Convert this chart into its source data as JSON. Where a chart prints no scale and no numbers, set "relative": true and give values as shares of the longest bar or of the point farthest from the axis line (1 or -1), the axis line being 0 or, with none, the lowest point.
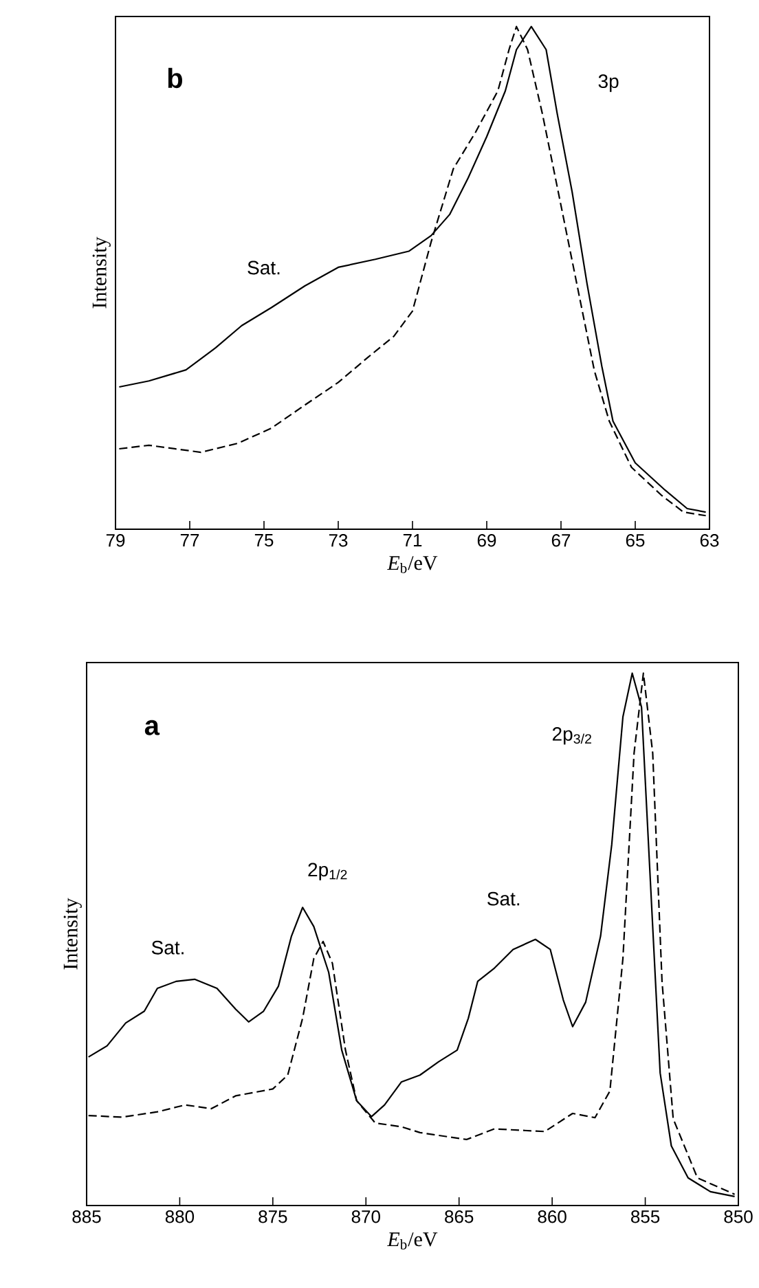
{
  "chart_data": [
    {
      "type": "line",
      "relative": true,
      "xlabel": "*E*$_{b}$/eV",
      "ylabel": "Intensity",
      "xlim": [
        79,
        63
      ],
      "xticks": [
        79,
        77,
        75,
        73,
        71,
        69,
        67,
        65,
        63
      ],
      "annotations": [
        "b",
        "Sat.",
        "3p"
      ],
      "series": [
        {
          "color": "#000000",
          "line_style": "solid",
          "x": [
            78.9,
            78.1,
            77.1,
            76.3,
            75.6,
            74.8,
            73.9,
            73.0,
            72.0,
            71.1,
            70.5,
            70.0,
            69.5,
            69.0,
            68.5,
            68.2,
            67.8,
            67.4,
            67.1,
            66.7,
            66.3,
            65.9,
            65.6,
            65.0,
            64.2,
            63.6,
            63.1
          ],
          "values": [
            0.283,
            0.295,
            0.317,
            0.361,
            0.405,
            0.441,
            0.484,
            0.521,
            0.537,
            0.553,
            0.584,
            0.626,
            0.699,
            0.781,
            0.872,
            0.954,
            1,
            0.954,
            0.826,
            0.671,
            0.489,
            0.324,
            0.215,
            0.132,
            0.078,
            0.041,
            0.034
          ]
        },
        {
          "color": "#000000",
          "line_style": "dashed",
          "x": [
            78.9,
            78.1,
            76.7,
            75.7,
            74.8,
            73.9,
            73.0,
            72.2,
            71.5,
            71.0,
            70.5,
            69.9,
            69.3,
            68.7,
            68.4,
            68.2,
            67.9,
            67.5,
            67.0,
            66.5,
            66.1,
            65.7,
            65.1,
            64.3,
            63.7,
            63.1
          ],
          "values": [
            0.16,
            0.167,
            0.153,
            0.171,
            0.201,
            0.247,
            0.292,
            0.342,
            0.384,
            0.434,
            0.571,
            0.717,
            0.79,
            0.872,
            0.954,
            1,
            0.954,
            0.826,
            0.644,
            0.461,
            0.315,
            0.215,
            0.123,
            0.068,
            0.034,
            0.027
          ]
        }
      ]
    },
    {
      "type": "line",
      "relative": true,
      "xlabel": "*E*$_{b}$/eV",
      "ylabel": "Intensity",
      "xlim": [
        885,
        850
      ],
      "xticks": [
        885,
        880,
        875,
        870,
        865,
        860,
        855,
        850
      ],
      "annotations": [
        "a",
        "Sat.",
        "2p$_{1/2}$",
        "Sat.",
        "2p$_{3/2}$"
      ],
      "series": [
        {
          "color": "#000000",
          "line_style": "solid",
          "x": [
            884.9,
            883.9,
            882.9,
            881.9,
            881.2,
            880.2,
            879.2,
            878.0,
            877.0,
            876.3,
            875.5,
            874.7,
            874.0,
            873.4,
            872.8,
            872.0,
            871.3,
            870.5,
            869.7,
            869.0,
            868.1,
            867.1,
            866.1,
            865.1,
            864.5,
            864.0,
            863.1,
            862.1,
            860.9,
            860.1,
            859.4,
            858.9,
            858.2,
            857.4,
            856.8,
            856.2,
            855.7,
            855.2,
            854.7,
            854.2,
            853.6,
            852.7,
            851.5,
            850.2
          ],
          "values": [
            0.279,
            0.3,
            0.343,
            0.365,
            0.408,
            0.421,
            0.425,
            0.408,
            0.369,
            0.345,
            0.365,
            0.412,
            0.506,
            0.56,
            0.524,
            0.438,
            0.292,
            0.197,
            0.167,
            0.189,
            0.232,
            0.245,
            0.27,
            0.292,
            0.352,
            0.421,
            0.446,
            0.481,
            0.5,
            0.481,
            0.386,
            0.336,
            0.382,
            0.506,
            0.678,
            0.918,
            1,
            0.936,
            0.592,
            0.249,
            0.112,
            0.052,
            0.026,
            0.017
          ]
        },
        {
          "color": "#000000",
          "line_style": "dashed",
          "x": [
            884.9,
            883.1,
            881.2,
            879.7,
            878.3,
            877.0,
            875.0,
            874.2,
            873.4,
            872.8,
            872.3,
            871.8,
            871.1,
            870.5,
            869.5,
            868.1,
            867.1,
            864.6,
            863.1,
            860.4,
            858.9,
            857.7,
            856.9,
            856.2,
            855.6,
            855.1,
            854.6,
            854.1,
            853.5,
            852.2,
            850.2
          ],
          "values": [
            0.169,
            0.166,
            0.176,
            0.189,
            0.182,
            0.206,
            0.219,
            0.245,
            0.352,
            0.464,
            0.496,
            0.455,
            0.292,
            0.197,
            0.155,
            0.148,
            0.137,
            0.124,
            0.144,
            0.139,
            0.173,
            0.165,
            0.215,
            0.464,
            0.85,
            1,
            0.85,
            0.421,
            0.163,
            0.052,
            0.021
          ]
        }
      ]
    }
  ]
}
